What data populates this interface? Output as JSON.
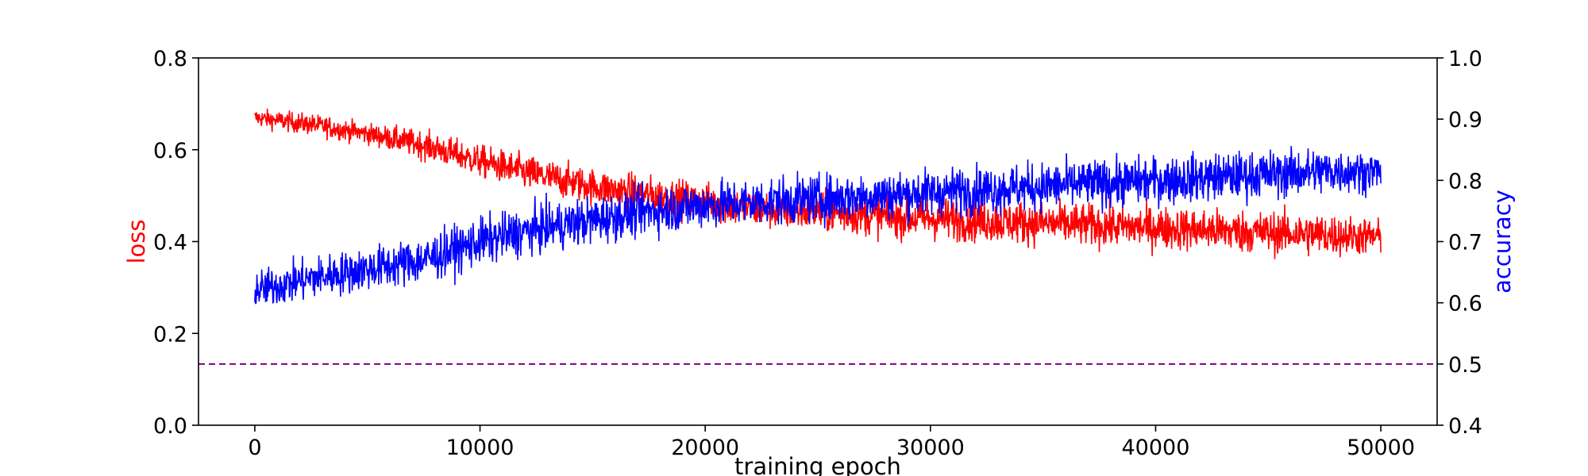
{
  "chart_data": {
    "type": "line",
    "xlabel": "training epoch",
    "ylabel_left": "loss",
    "ylabel_right": "accuracy",
    "xlim": [
      -2500,
      52500
    ],
    "ylim_left": [
      0.0,
      0.8
    ],
    "ylim_right": [
      0.4,
      1.0
    ],
    "x_ticks": [
      0,
      10000,
      20000,
      30000,
      40000,
      50000
    ],
    "y_ticks_left": [
      0.0,
      0.2,
      0.4,
      0.6,
      0.8
    ],
    "y_ticks_right": [
      0.4,
      0.5,
      0.6,
      0.7,
      0.8,
      0.9,
      1.0
    ],
    "x_tick_labels": [
      "0",
      "10000",
      "20000",
      "30000",
      "40000",
      "50000"
    ],
    "y_tick_labels_left": [
      "0.0",
      "0.2",
      "0.4",
      "0.6",
      "0.8"
    ],
    "y_tick_labels_right": [
      "0.4",
      "0.5",
      "0.6",
      "0.7",
      "0.8",
      "0.9",
      "1.0"
    ],
    "grid": false,
    "reference_line": {
      "axis": "right",
      "value": 0.5,
      "color": "#800080",
      "style": "dashed"
    },
    "series": [
      {
        "axis": "left",
        "color": "#ff0000",
        "x": [
          0,
          2500,
          5000,
          7500,
          10000,
          12500,
          15000,
          17500,
          20000,
          22500,
          25000,
          27500,
          30000,
          32500,
          35000,
          37500,
          40000,
          42500,
          45000,
          47500,
          50000
        ],
        "y_mean": [
          0.67,
          0.655,
          0.635,
          0.61,
          0.575,
          0.545,
          0.52,
          0.5,
          0.485,
          0.47,
          0.465,
          0.455,
          0.45,
          0.445,
          0.44,
          0.435,
          0.43,
          0.425,
          0.42,
          0.415,
          0.41
        ],
        "y_spread": [
          0.025,
          0.03,
          0.03,
          0.04,
          0.045,
          0.05,
          0.05,
          0.055,
          0.055,
          0.055,
          0.055,
          0.055,
          0.06,
          0.06,
          0.06,
          0.06,
          0.06,
          0.06,
          0.06,
          0.06,
          0.05
        ]
      },
      {
        "axis": "right",
        "color": "#0000ff",
        "x": [
          0,
          2500,
          5000,
          7500,
          10000,
          12500,
          15000,
          17500,
          20000,
          22500,
          25000,
          27500,
          30000,
          32500,
          35000,
          37500,
          40000,
          42500,
          45000,
          47500,
          50000
        ],
        "y_mean": [
          0.62,
          0.64,
          0.655,
          0.67,
          0.7,
          0.72,
          0.735,
          0.75,
          0.76,
          0.765,
          0.77,
          0.775,
          0.78,
          0.785,
          0.79,
          0.795,
          0.8,
          0.805,
          0.81,
          0.815,
          0.815
        ],
        "y_spread": [
          0.04,
          0.045,
          0.045,
          0.05,
          0.05,
          0.05,
          0.05,
          0.05,
          0.05,
          0.05,
          0.05,
          0.05,
          0.05,
          0.05,
          0.05,
          0.05,
          0.05,
          0.05,
          0.05,
          0.05,
          0.04
        ]
      }
    ]
  }
}
